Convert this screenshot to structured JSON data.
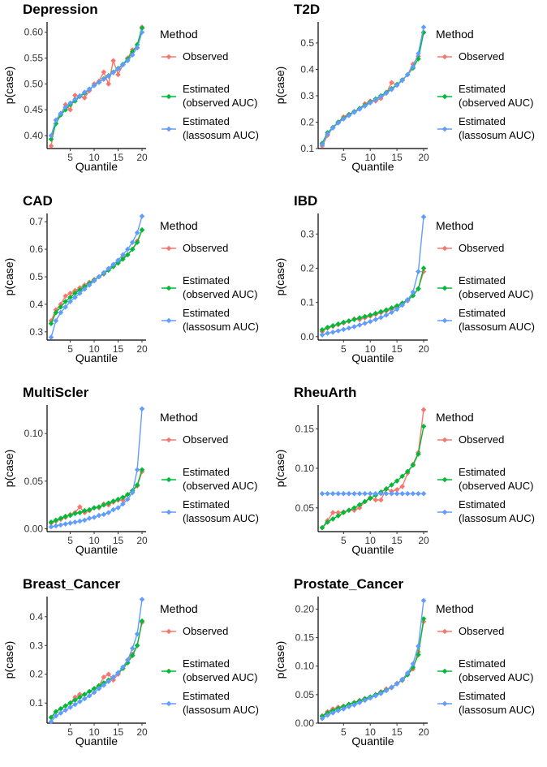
{
  "chart_data": [
    {
      "type": "line",
      "title": "Depression",
      "xlabel": "Quantile",
      "ylabel": "p(case)",
      "ylim": [
        0.375,
        0.62
      ],
      "yticks": [
        0.4,
        0.45,
        0.5,
        0.55,
        0.6
      ],
      "ytick_labels": [
        "0.40",
        "0.45",
        "0.50",
        "0.55",
        "0.60"
      ],
      "series": [
        {
          "name": "Observed",
          "values": [
            0.38,
            0.43,
            0.44,
            0.46,
            0.45,
            0.478,
            0.476,
            0.473,
            0.487,
            0.5,
            0.505,
            0.523,
            0.5,
            0.545,
            0.518,
            0.537,
            0.55,
            0.566,
            0.57,
            0.61
          ]
        },
        {
          "name": "Estimated (observed AUC)",
          "values": [
            0.393,
            0.423,
            0.44,
            0.45,
            0.46,
            0.467,
            0.476,
            0.482,
            0.49,
            0.497,
            0.503,
            0.51,
            0.516,
            0.523,
            0.53,
            0.538,
            0.548,
            0.562,
            0.576,
            0.608
          ]
        },
        {
          "name": "Estimated (lassosum AUC)",
          "values": [
            0.4,
            0.43,
            0.443,
            0.455,
            0.463,
            0.47,
            0.477,
            0.484,
            0.49,
            0.497,
            0.503,
            0.509,
            0.515,
            0.522,
            0.529,
            0.537,
            0.545,
            0.556,
            0.57,
            0.6
          ]
        }
      ]
    },
    {
      "type": "line",
      "title": "T2D",
      "xlabel": "Quantile",
      "ylabel": "p(case)",
      "ylim": [
        0.1,
        0.58
      ],
      "yticks": [
        0.1,
        0.2,
        0.3,
        0.4,
        0.5
      ],
      "ytick_labels": [
        "0.1",
        "0.2",
        "0.3",
        "0.4",
        "0.5"
      ],
      "series": [
        {
          "name": "Observed",
          "values": [
            0.11,
            0.15,
            0.18,
            0.2,
            0.22,
            0.23,
            0.24,
            0.25,
            0.27,
            0.28,
            0.28,
            0.29,
            0.31,
            0.35,
            0.34,
            0.36,
            0.38,
            0.42,
            0.45,
            0.54
          ]
        },
        {
          "name": "Estimated (observed AUC)",
          "values": [
            0.12,
            0.16,
            0.18,
            0.2,
            0.215,
            0.228,
            0.24,
            0.252,
            0.264,
            0.276,
            0.288,
            0.3,
            0.313,
            0.327,
            0.343,
            0.36,
            0.38,
            0.405,
            0.44,
            0.54
          ]
        },
        {
          "name": "Estimated (lassosum AUC)",
          "values": [
            0.115,
            0.155,
            0.178,
            0.197,
            0.212,
            0.225,
            0.237,
            0.249,
            0.261,
            0.273,
            0.285,
            0.297,
            0.31,
            0.324,
            0.34,
            0.358,
            0.38,
            0.41,
            0.46,
            0.56
          ]
        }
      ]
    },
    {
      "type": "line",
      "title": "CAD",
      "xlabel": "Quantile",
      "ylabel": "p(case)",
      "ylim": [
        0.27,
        0.73
      ],
      "yticks": [
        0.3,
        0.4,
        0.5,
        0.6,
        0.7
      ],
      "ytick_labels": [
        "0.3",
        "0.4",
        "0.5",
        "0.6",
        "0.7"
      ],
      "series": [
        {
          "name": "Observed",
          "values": [
            0.34,
            0.38,
            0.4,
            0.43,
            0.44,
            0.45,
            0.46,
            0.47,
            0.48,
            0.49,
            0.5,
            0.51,
            0.53,
            0.54,
            0.55,
            0.57,
            0.58,
            0.6,
            0.63,
            0.67
          ]
        },
        {
          "name": "Estimated (observed AUC)",
          "values": [
            0.33,
            0.37,
            0.39,
            0.41,
            0.425,
            0.44,
            0.452,
            0.464,
            0.476,
            0.488,
            0.5,
            0.512,
            0.524,
            0.537,
            0.55,
            0.564,
            0.58,
            0.6,
            0.625,
            0.67
          ]
        },
        {
          "name": "Estimated (lassosum AUC)",
          "values": [
            0.28,
            0.34,
            0.37,
            0.39,
            0.41,
            0.425,
            0.44,
            0.455,
            0.47,
            0.485,
            0.5,
            0.515,
            0.53,
            0.545,
            0.56,
            0.58,
            0.6,
            0.625,
            0.66,
            0.72
          ]
        }
      ]
    },
    {
      "type": "line",
      "title": "IBD",
      "xlabel": "Quantile",
      "ylabel": "p(case)",
      "ylim": [
        -0.01,
        0.36
      ],
      "yticks": [
        0,
        0.1,
        0.2,
        0.3
      ],
      "ytick_labels": [
        "0.0",
        "0.1",
        "0.2",
        "0.3"
      ],
      "series": [
        {
          "name": "Observed",
          "values": [
            0.015,
            0.025,
            0.03,
            0.035,
            0.04,
            0.045,
            0.052,
            0.05,
            0.055,
            0.06,
            0.065,
            0.07,
            0.075,
            0.08,
            0.088,
            0.095,
            0.105,
            0.12,
            0.14,
            0.19
          ]
        },
        {
          "name": "Estimated (observed AUC)",
          "values": [
            0.02,
            0.027,
            0.032,
            0.037,
            0.042,
            0.046,
            0.05,
            0.055,
            0.059,
            0.063,
            0.068,
            0.073,
            0.078,
            0.084,
            0.09,
            0.098,
            0.108,
            0.12,
            0.14,
            0.2
          ]
        },
        {
          "name": "Estimated (lassosum AUC)",
          "values": [
            0.005,
            0.01,
            0.013,
            0.017,
            0.021,
            0.025,
            0.029,
            0.034,
            0.039,
            0.044,
            0.05,
            0.056,
            0.063,
            0.071,
            0.08,
            0.092,
            0.107,
            0.13,
            0.19,
            0.35
          ]
        }
      ]
    },
    {
      "type": "line",
      "title": "MultiScler",
      "xlabel": "Quantile",
      "ylabel": "p(case)",
      "ylim": [
        -0.003,
        0.13
      ],
      "yticks": [
        0,
        0.05,
        0.1
      ],
      "ytick_labels": [
        "0.00",
        "0.05",
        "0.10"
      ],
      "series": [
        {
          "name": "Observed",
          "values": [
            0.006,
            0.008,
            0.01,
            0.012,
            0.015,
            0.017,
            0.023,
            0.017,
            0.019,
            0.022,
            0.022,
            0.026,
            0.025,
            0.028,
            0.03,
            0.03,
            0.036,
            0.04,
            0.045,
            0.06
          ]
        },
        {
          "name": "Estimated (observed AUC)",
          "values": [
            0.007,
            0.009,
            0.011,
            0.013,
            0.014,
            0.016,
            0.017,
            0.019,
            0.02,
            0.022,
            0.023,
            0.025,
            0.027,
            0.029,
            0.031,
            0.033,
            0.036,
            0.04,
            0.046,
            0.062
          ]
        },
        {
          "name": "Estimated (lassosum AUC)",
          "values": [
            0.002,
            0.003,
            0.004,
            0.005,
            0.006,
            0.007,
            0.008,
            0.009,
            0.011,
            0.012,
            0.014,
            0.015,
            0.017,
            0.02,
            0.022,
            0.026,
            0.031,
            0.038,
            0.062,
            0.126
          ]
        }
      ]
    },
    {
      "type": "line",
      "title": "RheuArth",
      "xlabel": "Quantile",
      "ylabel": "p(case)",
      "ylim": [
        0.02,
        0.18
      ],
      "yticks": [
        0.05,
        0.1,
        0.15
      ],
      "ytick_labels": [
        "0.05",
        "0.10",
        "0.15"
      ],
      "series": [
        {
          "name": "Observed",
          "values": [
            0.025,
            0.034,
            0.044,
            0.044,
            0.045,
            0.047,
            0.047,
            0.05,
            0.058,
            0.063,
            0.06,
            0.06,
            0.074,
            0.071,
            0.073,
            0.077,
            0.094,
            0.105,
            0.12,
            0.174
          ]
        },
        {
          "name": "Estimated (observed AUC)",
          "values": [
            0.025,
            0.032,
            0.036,
            0.04,
            0.044,
            0.047,
            0.05,
            0.054,
            0.058,
            0.062,
            0.066,
            0.07,
            0.074,
            0.079,
            0.084,
            0.09,
            0.096,
            0.104,
            0.118,
            0.153
          ]
        },
        {
          "name": "Estimated (lassosum AUC)",
          "values": [
            0.068,
            0.068,
            0.068,
            0.068,
            0.068,
            0.068,
            0.068,
            0.068,
            0.068,
            0.068,
            0.068,
            0.068,
            0.068,
            0.068,
            0.068,
            0.068,
            0.068,
            0.068,
            0.068,
            0.068
          ]
        }
      ]
    },
    {
      "type": "line",
      "title": "Breast_Cancer",
      "xlabel": "Quantile",
      "ylabel": "p(case)",
      "ylim": [
        0.03,
        0.47
      ],
      "yticks": [
        0.1,
        0.2,
        0.3,
        0.4
      ],
      "ytick_labels": [
        "0.1",
        "0.2",
        "0.3",
        "0.4"
      ],
      "series": [
        {
          "name": "Observed",
          "values": [
            0.05,
            0.07,
            0.08,
            0.09,
            0.1,
            0.12,
            0.13,
            0.13,
            0.14,
            0.15,
            0.16,
            0.19,
            0.2,
            0.18,
            0.2,
            0.22,
            0.25,
            0.27,
            0.3,
            0.38
          ]
        },
        {
          "name": "Estimated (observed AUC)",
          "values": [
            0.05,
            0.07,
            0.08,
            0.09,
            0.1,
            0.11,
            0.12,
            0.13,
            0.14,
            0.15,
            0.16,
            0.17,
            0.18,
            0.19,
            0.205,
            0.22,
            0.24,
            0.265,
            0.3,
            0.385
          ]
        },
        {
          "name": "Estimated (lassosum AUC)",
          "values": [
            0.035,
            0.055,
            0.065,
            0.075,
            0.085,
            0.095,
            0.105,
            0.115,
            0.125,
            0.137,
            0.15,
            0.162,
            0.175,
            0.19,
            0.205,
            0.225,
            0.25,
            0.29,
            0.34,
            0.46
          ]
        }
      ]
    },
    {
      "type": "line",
      "title": "Prostate_Cancer",
      "xlabel": "Quantile",
      "ylabel": "p(case)",
      "ylim": [
        0,
        0.222
      ],
      "yticks": [
        0,
        0.05,
        0.1,
        0.15,
        0.2
      ],
      "ytick_labels": [
        "0.00",
        "0.05",
        "0.10",
        "0.15",
        "0.20"
      ],
      "series": [
        {
          "name": "Observed",
          "values": [
            0.013,
            0.02,
            0.025,
            0.028,
            0.03,
            0.033,
            0.036,
            0.04,
            0.043,
            0.045,
            0.05,
            0.055,
            0.06,
            0.062,
            0.07,
            0.075,
            0.085,
            0.095,
            0.125,
            0.178
          ]
        },
        {
          "name": "Estimated (observed AUC)",
          "values": [
            0.012,
            0.018,
            0.022,
            0.026,
            0.029,
            0.033,
            0.036,
            0.039,
            0.043,
            0.046,
            0.05,
            0.054,
            0.058,
            0.063,
            0.069,
            0.076,
            0.085,
            0.098,
            0.12,
            0.183
          ]
        },
        {
          "name": "Estimated (lassosum AUC)",
          "values": [
            0.008,
            0.014,
            0.018,
            0.022,
            0.025,
            0.029,
            0.032,
            0.036,
            0.04,
            0.044,
            0.048,
            0.052,
            0.057,
            0.063,
            0.069,
            0.077,
            0.088,
            0.104,
            0.135,
            0.215
          ]
        }
      ]
    }
  ],
  "x_ticks": [
    5,
    10,
    15,
    20
  ],
  "xlim": [
    1,
    20
  ],
  "legend": {
    "title": "Method",
    "entries": [
      [
        "Observed"
      ],
      [
        "Estimated",
        "(observed AUC)"
      ],
      [
        "Estimated",
        "(lassosum AUC)"
      ]
    ],
    "placement": "right"
  },
  "colors": [
    "#F8766D",
    "#00BA38",
    "#619CFF"
  ]
}
